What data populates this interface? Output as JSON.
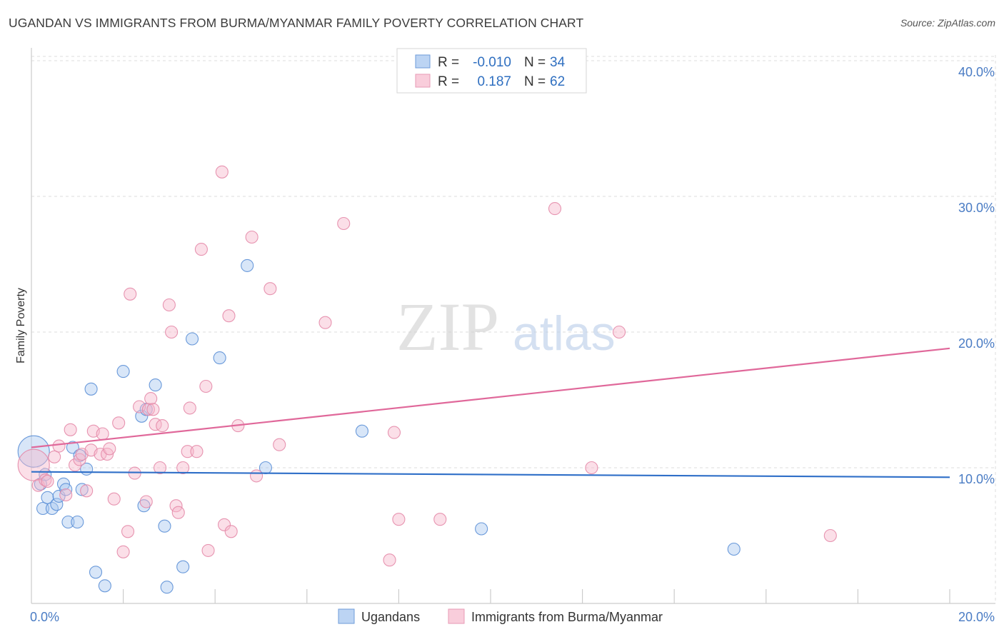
{
  "title": "UGANDAN VS IMMIGRANTS FROM BURMA/MYANMAR FAMILY POVERTY CORRELATION CHART",
  "source": "Source: ZipAtlas.com",
  "watermark": {
    "zip": "ZIP",
    "atlas": "atlas"
  },
  "colors": {
    "ugandans_fill": "#a9c8f0",
    "ugandans_stroke": "#5b8fd6",
    "ugandans_line": "#2f6fc8",
    "burma_fill": "#f6b8cc",
    "burma_stroke": "#e48aa8",
    "burma_line": "#e0689a",
    "grid": "#dddddd",
    "axis": "#cccccc",
    "tick_label": "#4a7cc4"
  },
  "legend": {
    "rows": [
      {
        "r_label": "R =",
        "r_value": "-0.010",
        "n_label": "N =",
        "n_value": "34",
        "series": "ugandans"
      },
      {
        "r_label": "R =",
        "r_value": "0.187",
        "n_label": "N =",
        "n_value": "62",
        "series": "burma"
      }
    ]
  },
  "chart_data": {
    "type": "scatter",
    "title": "UGANDAN VS IMMIGRANTS FROM BURMA/MYANMAR FAMILY POVERTY CORRELATION CHART",
    "xlabel": "",
    "ylabel": "Family Poverty",
    "xlim": [
      0,
      21
    ],
    "ylim": [
      0,
      41
    ],
    "x_tick_labels": [
      {
        "value": 0,
        "label": "0.0%"
      },
      {
        "value": 20,
        "label": "20.0%"
      }
    ],
    "y_tick_labels": [
      {
        "value": 10,
        "label": "10.0%"
      },
      {
        "value": 20,
        "label": "20.0%"
      },
      {
        "value": 30,
        "label": "30.0%"
      },
      {
        "value": 40,
        "label": "40.0%"
      }
    ],
    "x_minor_ticks": [
      2,
      4,
      6,
      8,
      10,
      12,
      14,
      16,
      18,
      20
    ],
    "grid": true,
    "series": [
      {
        "name": "Ugandans",
        "key": "ugandans",
        "trend": {
          "x": [
            0,
            20
          ],
          "y": [
            9.7,
            9.3
          ]
        },
        "points": [
          {
            "x": 0.05,
            "y": 11.2,
            "r": "large"
          },
          {
            "x": 0.2,
            "y": 8.8
          },
          {
            "x": 0.25,
            "y": 7.0
          },
          {
            "x": 0.3,
            "y": 9.5
          },
          {
            "x": 0.35,
            "y": 7.8
          },
          {
            "x": 0.45,
            "y": 7.0
          },
          {
            "x": 0.55,
            "y": 7.3
          },
          {
            "x": 0.6,
            "y": 7.9
          },
          {
            "x": 0.7,
            "y": 8.8
          },
          {
            "x": 0.75,
            "y": 8.4
          },
          {
            "x": 0.8,
            "y": 6.0
          },
          {
            "x": 0.9,
            "y": 11.5
          },
          {
            "x": 1.0,
            "y": 6.0
          },
          {
            "x": 1.05,
            "y": 10.9
          },
          {
            "x": 1.1,
            "y": 8.4
          },
          {
            "x": 1.2,
            "y": 9.9
          },
          {
            "x": 1.3,
            "y": 15.8
          },
          {
            "x": 1.4,
            "y": 2.3
          },
          {
            "x": 1.6,
            "y": 1.3
          },
          {
            "x": 2.0,
            "y": 17.1
          },
          {
            "x": 2.4,
            "y": 13.8
          },
          {
            "x": 2.45,
            "y": 7.2
          },
          {
            "x": 2.5,
            "y": 14.3
          },
          {
            "x": 2.7,
            "y": 16.1
          },
          {
            "x": 2.9,
            "y": 5.7
          },
          {
            "x": 2.95,
            "y": 1.2
          },
          {
            "x": 3.3,
            "y": 2.7
          },
          {
            "x": 3.5,
            "y": 19.5
          },
          {
            "x": 4.1,
            "y": 18.1
          },
          {
            "x": 4.7,
            "y": 24.9
          },
          {
            "x": 5.1,
            "y": 10.0
          },
          {
            "x": 7.2,
            "y": 12.7
          },
          {
            "x": 9.8,
            "y": 5.5
          },
          {
            "x": 15.3,
            "y": 4.0
          }
        ]
      },
      {
        "name": "Immigrants from Burma/Myanmar",
        "key": "burma",
        "trend": {
          "x": [
            0,
            20
          ],
          "y": [
            11.5,
            18.8
          ]
        },
        "points": [
          {
            "x": 0.05,
            "y": 10.2,
            "r": "large"
          },
          {
            "x": 0.15,
            "y": 8.7
          },
          {
            "x": 0.3,
            "y": 9.1
          },
          {
            "x": 0.35,
            "y": 9.0
          },
          {
            "x": 0.5,
            "y": 10.8
          },
          {
            "x": 0.6,
            "y": 11.6
          },
          {
            "x": 0.75,
            "y": 8.0
          },
          {
            "x": 0.85,
            "y": 12.8
          },
          {
            "x": 0.95,
            "y": 10.2
          },
          {
            "x": 1.05,
            "y": 10.6
          },
          {
            "x": 1.1,
            "y": 11.0
          },
          {
            "x": 1.2,
            "y": 8.3
          },
          {
            "x": 1.3,
            "y": 11.3
          },
          {
            "x": 1.35,
            "y": 12.7
          },
          {
            "x": 1.5,
            "y": 11.0
          },
          {
            "x": 1.55,
            "y": 12.5
          },
          {
            "x": 1.65,
            "y": 11.0
          },
          {
            "x": 1.7,
            "y": 11.4
          },
          {
            "x": 1.8,
            "y": 7.7
          },
          {
            "x": 1.9,
            "y": 13.3
          },
          {
            "x": 2.0,
            "y": 3.8
          },
          {
            "x": 2.1,
            "y": 5.3
          },
          {
            "x": 2.15,
            "y": 22.8
          },
          {
            "x": 2.25,
            "y": 9.6
          },
          {
            "x": 2.35,
            "y": 14.5
          },
          {
            "x": 2.5,
            "y": 7.5
          },
          {
            "x": 2.55,
            "y": 14.3
          },
          {
            "x": 2.6,
            "y": 15.1
          },
          {
            "x": 2.65,
            "y": 14.3
          },
          {
            "x": 2.7,
            "y": 13.2
          },
          {
            "x": 2.8,
            "y": 10.0
          },
          {
            "x": 2.85,
            "y": 13.1
          },
          {
            "x": 3.0,
            "y": 22.0
          },
          {
            "x": 3.05,
            "y": 20.0
          },
          {
            "x": 3.15,
            "y": 7.2
          },
          {
            "x": 3.2,
            "y": 6.7
          },
          {
            "x": 3.3,
            "y": 10.0
          },
          {
            "x": 3.4,
            "y": 11.2
          },
          {
            "x": 3.45,
            "y": 14.4
          },
          {
            "x": 3.6,
            "y": 11.2
          },
          {
            "x": 3.7,
            "y": 26.1
          },
          {
            "x": 3.8,
            "y": 16.0
          },
          {
            "x": 3.85,
            "y": 3.9
          },
          {
            "x": 4.15,
            "y": 31.8
          },
          {
            "x": 4.2,
            "y": 5.8
          },
          {
            "x": 4.3,
            "y": 21.2
          },
          {
            "x": 4.35,
            "y": 5.3
          },
          {
            "x": 4.5,
            "y": 13.1
          },
          {
            "x": 4.8,
            "y": 27.0
          },
          {
            "x": 4.9,
            "y": 9.4
          },
          {
            "x": 5.2,
            "y": 23.2
          },
          {
            "x": 5.4,
            "y": 11.7
          },
          {
            "x": 6.4,
            "y": 20.7
          },
          {
            "x": 6.8,
            "y": 28.0
          },
          {
            "x": 7.8,
            "y": 3.2
          },
          {
            "x": 7.9,
            "y": 12.6
          },
          {
            "x": 8.0,
            "y": 6.2
          },
          {
            "x": 8.9,
            "y": 6.2
          },
          {
            "x": 11.4,
            "y": 29.1
          },
          {
            "x": 12.2,
            "y": 10.0
          },
          {
            "x": 12.8,
            "y": 20.0
          },
          {
            "x": 17.4,
            "y": 5.0
          }
        ]
      }
    ]
  }
}
